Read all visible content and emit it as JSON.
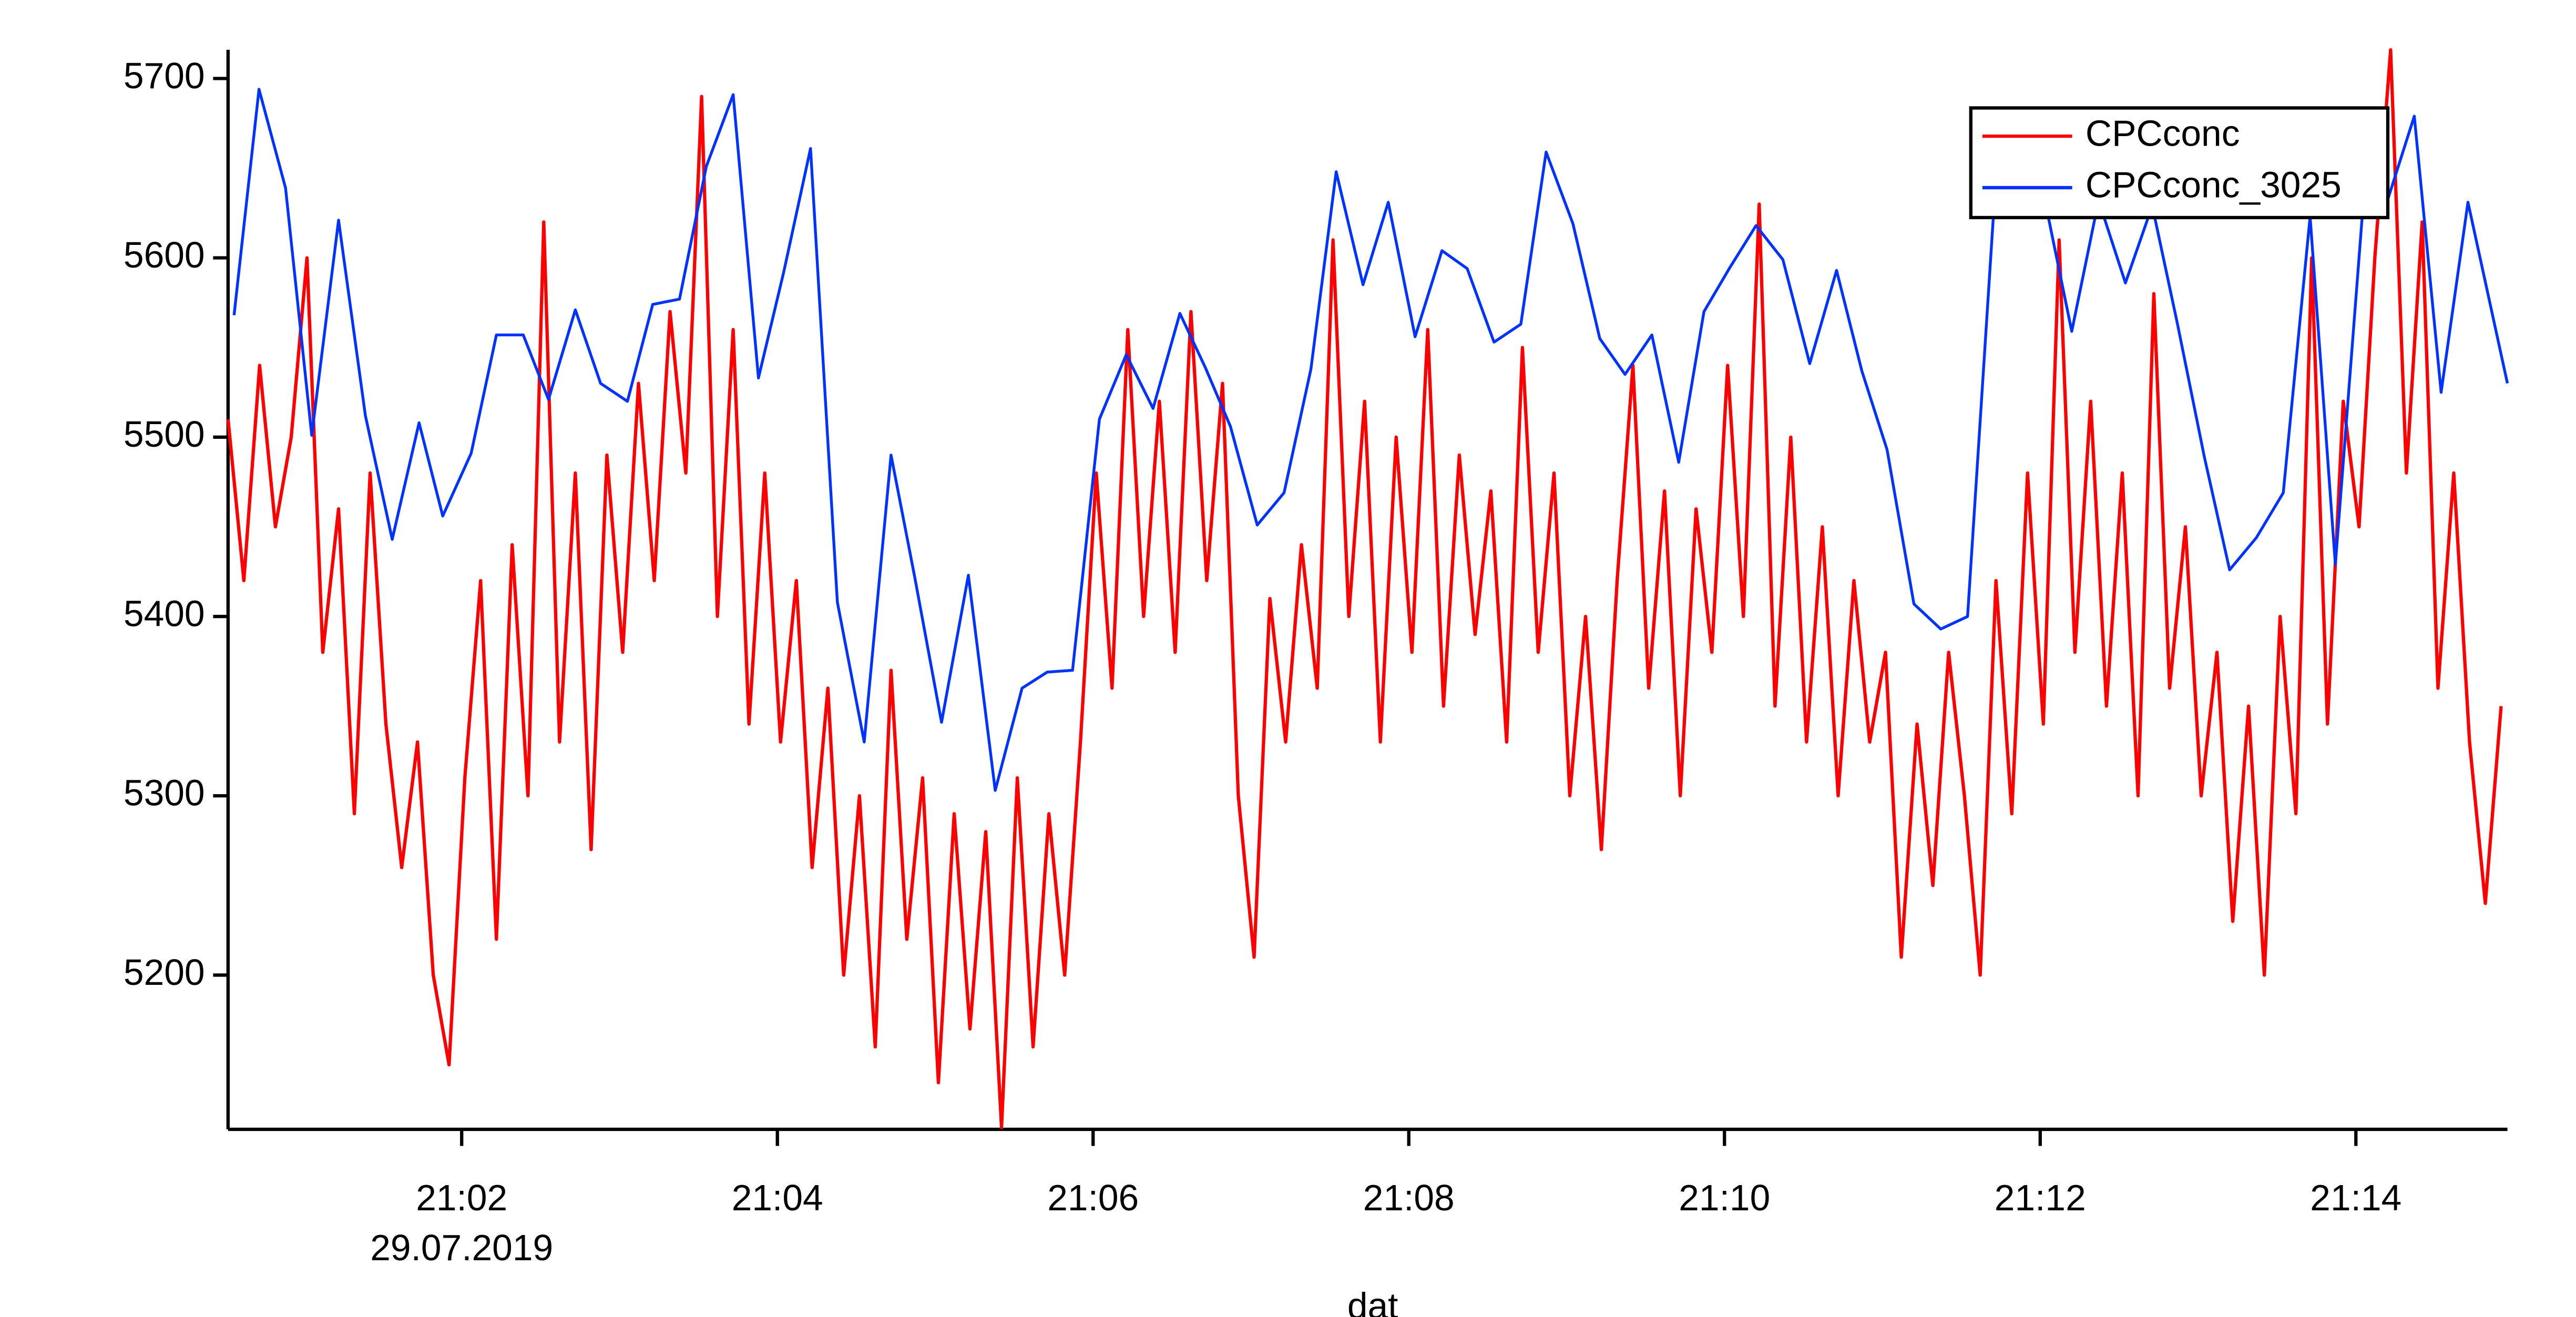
{
  "chart_data": {
    "type": "line",
    "x_label": "dat",
    "date_label": "29.07.2019",
    "xlim": [
      0.52,
      14.96
    ],
    "xticks": [
      {
        "value": 2,
        "label": "21:02"
      },
      {
        "value": 4,
        "label": "21:04"
      },
      {
        "value": 6,
        "label": "21:06"
      },
      {
        "value": 8,
        "label": "21:08"
      },
      {
        "value": 10,
        "label": "21:10"
      },
      {
        "value": 12,
        "label": "21:12"
      },
      {
        "value": 14,
        "label": "21:14"
      }
    ],
    "ylim": [
      5114,
      5716
    ],
    "yticks": [
      5200,
      5300,
      5400,
      5500,
      5600,
      5700
    ],
    "grid": false,
    "legend": "upper right",
    "series": [
      {
        "name": "CPCconc",
        "color": "#ff0000",
        "x": [
          0.52,
          0.62,
          0.72,
          0.82,
          0.92,
          1.02,
          1.12,
          1.22,
          1.32,
          1.42,
          1.52,
          1.62,
          1.72,
          1.82,
          1.92,
          2.02,
          2.12,
          2.22,
          2.32,
          2.42,
          2.52,
          2.62,
          2.72,
          2.82,
          2.92,
          3.02,
          3.12,
          3.22,
          3.32,
          3.42,
          3.52,
          3.62,
          3.72,
          3.82,
          3.92,
          4.02,
          4.12,
          4.22,
          4.32,
          4.42,
          4.52,
          4.62,
          4.72,
          4.82,
          4.92,
          5.02,
          5.12,
          5.22,
          5.32,
          5.42,
          5.52,
          5.62,
          5.72,
          5.82,
          5.92,
          6.02,
          6.12,
          6.22,
          6.32,
          6.42,
          6.52,
          6.62,
          6.72,
          6.82,
          6.92,
          7.02,
          7.12,
          7.22,
          7.32,
          7.42,
          7.52,
          7.62,
          7.72,
          7.82,
          7.92,
          8.02,
          8.12,
          8.22,
          8.32,
          8.42,
          8.52,
          8.62,
          8.72,
          8.82,
          8.92,
          9.02,
          9.12,
          9.22,
          9.32,
          9.42,
          9.52,
          9.62,
          9.72,
          9.82,
          9.92,
          10.02,
          10.12,
          10.22,
          10.32,
          10.42,
          10.52,
          10.62,
          10.72,
          10.82,
          10.92,
          11.02,
          11.12,
          11.22,
          11.32,
          11.42,
          11.52,
          11.62,
          11.72,
          11.82,
          11.92,
          12.02,
          12.12,
          12.22,
          12.32,
          12.42,
          12.52,
          12.62,
          12.72,
          12.82,
          12.92,
          13.02,
          13.12,
          13.22,
          13.32,
          13.42,
          13.52,
          13.62,
          13.72,
          13.82,
          13.92,
          14.02,
          14.12,
          14.22,
          14.32,
          14.42,
          14.52,
          14.62,
          14.72,
          14.82,
          14.92
        ],
        "values": [
          5510,
          5420,
          5540,
          5450,
          5500,
          5600,
          5380,
          5460,
          5290,
          5480,
          5340,
          5260,
          5330,
          5200,
          5150,
          5310,
          5420,
          5220,
          5440,
          5300,
          5620,
          5330,
          5480,
          5270,
          5490,
          5380,
          5530,
          5420,
          5570,
          5480,
          5690,
          5400,
          5560,
          5340,
          5480,
          5330,
          5420,
          5260,
          5360,
          5200,
          5300,
          5160,
          5370,
          5220,
          5310,
          5140,
          5290,
          5170,
          5280,
          5115,
          5310,
          5160,
          5290,
          5200,
          5330,
          5480,
          5360,
          5560,
          5400,
          5520,
          5380,
          5570,
          5420,
          5530,
          5300,
          5210,
          5410,
          5330,
          5440,
          5360,
          5610,
          5400,
          5520,
          5330,
          5500,
          5380,
          5560,
          5350,
          5490,
          5390,
          5470,
          5330,
          5550,
          5380,
          5480,
          5300,
          5400,
          5270,
          5420,
          5540,
          5360,
          5470,
          5300,
          5460,
          5380,
          5540,
          5400,
          5630,
          5350,
          5500,
          5330,
          5450,
          5300,
          5420,
          5330,
          5380,
          5210,
          5340,
          5250,
          5380,
          5300,
          5200,
          5420,
          5290,
          5480,
          5340,
          5610,
          5380,
          5520,
          5350,
          5480,
          5300,
          5580,
          5360,
          5450,
          5300,
          5380,
          5230,
          5350,
          5200,
          5400,
          5290,
          5600,
          5340,
          5520,
          5450,
          5600,
          5716,
          5480,
          5620,
          5360,
          5480,
          5330,
          5240,
          5350
        ]
      },
      {
        "name": "CPCconc_3025",
        "color": "#0033ff",
        "x": [
          0.558,
          0.716,
          0.884,
          1.05,
          1.22,
          1.39,
          1.56,
          1.73,
          1.88,
          2.06,
          2.22,
          2.39,
          2.55,
          2.72,
          2.88,
          3.05,
          3.21,
          3.38,
          3.55,
          3.72,
          3.88,
          4.04,
          4.21,
          4.38,
          4.55,
          4.72,
          4.87,
          5.04,
          5.21,
          5.38,
          5.55,
          5.71,
          5.87,
          6.04,
          6.21,
          6.38,
          6.55,
          6.71,
          6.87,
          7.04,
          7.21,
          7.38,
          7.54,
          7.71,
          7.87,
          8.04,
          8.21,
          8.37,
          8.54,
          8.71,
          8.87,
          9.04,
          9.21,
          9.37,
          9.54,
          9.71,
          9.87,
          10.03,
          10.2,
          10.37,
          10.54,
          10.71,
          10.87,
          11.03,
          11.2,
          11.37,
          11.54,
          11.71,
          11.87,
          12.03,
          12.2,
          12.37,
          12.54,
          12.71,
          12.87,
          13.04,
          13.2,
          13.37,
          13.54,
          13.71,
          13.87,
          14.04,
          14.2,
          14.37,
          14.54,
          14.71,
          14.96
        ],
        "values": [
          5568,
          5694,
          5639,
          5501,
          5621,
          5512,
          5443,
          5508,
          5456,
          5491,
          5557,
          5557,
          5521,
          5571,
          5530,
          5520,
          5574,
          5577,
          5651,
          5691,
          5533,
          5592,
          5661,
          5408,
          5330,
          5490,
          5422,
          5341,
          5423,
          5303,
          5360,
          5369,
          5370,
          5510,
          5546,
          5516,
          5569,
          5539,
          5506,
          5451,
          5469,
          5538,
          5648,
          5585,
          5631,
          5556,
          5604,
          5594,
          5553,
          5563,
          5659,
          5619,
          5555,
          5535,
          5557,
          5486,
          5570,
          5594,
          5618,
          5599,
          5541,
          5593,
          5537,
          5493,
          5407,
          5393,
          5400,
          5632,
          5651,
          5632,
          5559,
          5632,
          5586,
          5629,
          5563,
          5489,
          5426,
          5444,
          5469,
          5623,
          5429,
          5623,
          5632,
          5679,
          5525,
          5631,
          5530
        ]
      }
    ]
  }
}
